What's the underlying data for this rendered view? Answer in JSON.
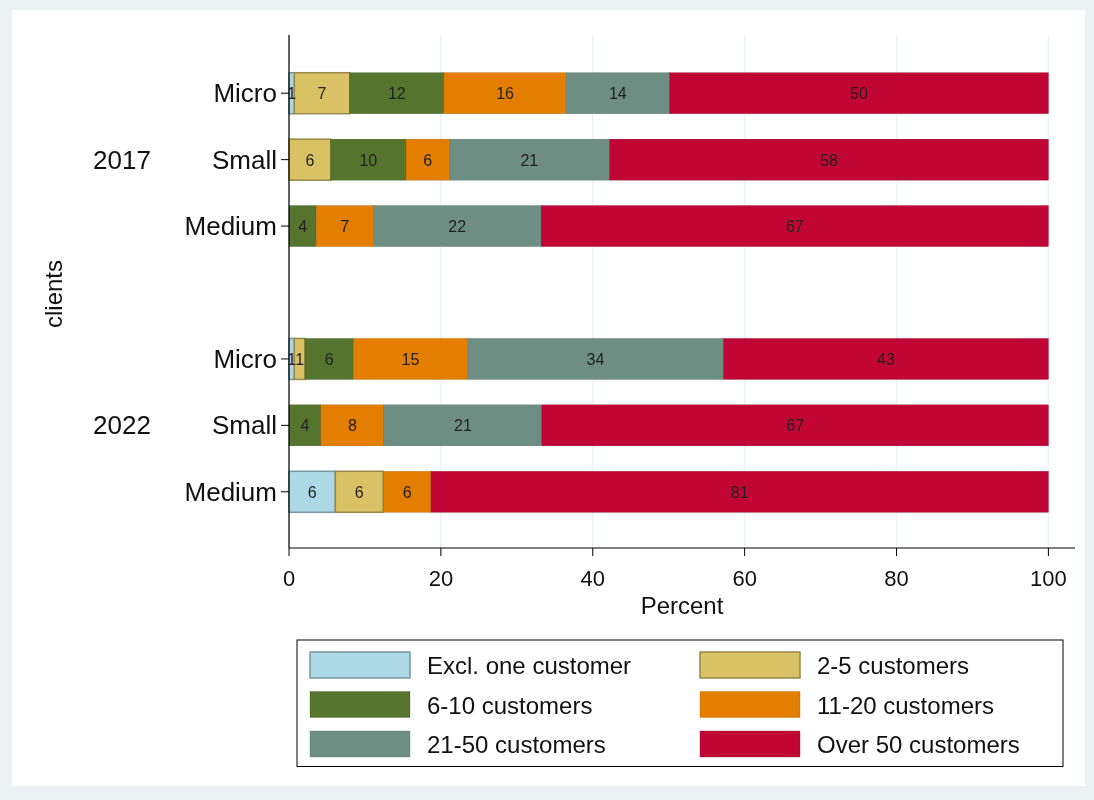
{
  "chart_data": {
    "type": "bar",
    "orientation": "horizontal",
    "stacked": true,
    "xlabel": "Percent",
    "ylabel": "clients",
    "categories": [
      "Micro",
      "Small",
      "Medium",
      null,
      "Micro",
      "Small",
      "Medium"
    ],
    "annotations": [
      "2017",
      "2022"
    ],
    "series": [
      {
        "name": "Excl. one customer",
        "color": "#add8e6",
        "values": [
          0.7,
          null,
          null,
          null,
          0.7,
          null,
          6.1
        ],
        "value_labels": [
          "1",
          null,
          null,
          null,
          "1",
          null,
          "6"
        ]
      },
      {
        "name": "2-5 customers",
        "color": "#d9c266",
        "values": [
          7.3,
          5.5,
          null,
          null,
          1.4,
          null,
          6.3
        ],
        "value_labels": [
          "7",
          "6",
          null,
          null,
          "1",
          null,
          "6"
        ]
      },
      {
        "name": "6-10 customers",
        "color": "#55752f",
        "values": [
          12.4,
          9.9,
          3.6,
          null,
          6.4,
          4.2,
          null
        ],
        "value_labels": [
          "12",
          "10",
          "4",
          null,
          "6",
          "4",
          null
        ]
      },
      {
        "name": "11-20 customers",
        "color": "#e37e00",
        "values": [
          16.1,
          5.7,
          7.5,
          null,
          15.0,
          8.3,
          6.3
        ],
        "value_labels": [
          "16",
          "6",
          "7",
          null,
          "15",
          "8",
          "6"
        ]
      },
      {
        "name": "21-50 customers",
        "color": "#6e8e84",
        "values": [
          13.6,
          21.1,
          22.1,
          null,
          33.7,
          20.8,
          null
        ],
        "value_labels": [
          "14",
          "21",
          "22",
          null,
          "34",
          "21",
          null
        ]
      },
      {
        "name": "Over 50 customers",
        "color": "#c10534",
        "values": [
          49.9,
          57.8,
          66.8,
          null,
          42.8,
          66.7,
          81.3
        ],
        "value_labels": [
          "50",
          "58",
          "67",
          null,
          "43",
          "67",
          "81"
        ]
      }
    ],
    "xlim": [
      0,
      103.5
    ],
    "xticks": [
      0,
      20,
      40,
      60,
      80,
      100
    ],
    "grid": "x",
    "legend": "bottom"
  }
}
